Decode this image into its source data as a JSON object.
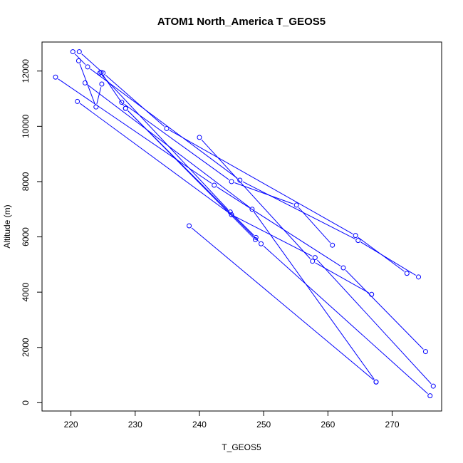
{
  "chart_data": {
    "type": "line",
    "title": "ATOM1 North_America T_GEOS5",
    "xlabel": "T_GEOS5",
    "ylabel": "Altitude (m)",
    "xlim": [
      215.5,
      277.7
    ],
    "ylim": [
      -300,
      13050
    ],
    "x_ticks": [
      "220",
      "230",
      "240",
      "250",
      "260",
      "270"
    ],
    "y_ticks": [
      "0",
      "2000",
      "4000",
      "6000",
      "8000",
      "10000",
      "12000"
    ],
    "line_color": "#0000ff",
    "point_style": "open-circle",
    "series": [
      {
        "x": [
          224.7,
          228.5,
          248.7
        ],
        "y": [
          11950,
          10650,
          5900
        ]
      },
      {
        "x": [
          228.5,
          249.6,
          275.9
        ],
        "y": [
          10650,
          5750,
          250
        ]
      },
      {
        "x": [
          221.0,
          245.0,
          258.0,
          276.4
        ],
        "y": [
          10900,
          6800,
          5250,
          600
        ]
      },
      {
        "x": [
          217.6,
          242.3,
          262.4,
          275.2
        ],
        "y": [
          11780,
          7870,
          4880,
          1850
        ]
      },
      {
        "x": [
          220.3,
          222.6,
          246.3,
          264.7,
          274.1
        ],
        "y": [
          12700,
          12150,
          8050,
          5870,
          4550
        ]
      },
      {
        "x": [
          221.3,
          225.0,
          234.9,
          264.3,
          272.3
        ],
        "y": [
          12700,
          11930,
          9920,
          6050,
          4680
        ]
      },
      {
        "x": [
          222.2,
          248.2,
          267.5
        ],
        "y": [
          11570,
          7000,
          750
        ]
      },
      {
        "x": [
          221.2,
          223.9,
          224.8
        ],
        "y": [
          12370,
          10700,
          11530
        ]
      },
      {
        "x": [
          227.9,
          245.0,
          255.1,
          260.7
        ],
        "y": [
          10870,
          8000,
          7150,
          5700
        ]
      },
      {
        "x": [
          240.0,
          257.6,
          266.8
        ],
        "y": [
          9600,
          5120,
          3920
        ]
      },
      {
        "x": [
          238.4,
          267.5
        ],
        "y": [
          6400,
          750
        ]
      },
      {
        "x": [
          224.5,
          244.8,
          248.8
        ],
        "y": [
          11930,
          6900,
          5980
        ]
      }
    ]
  }
}
